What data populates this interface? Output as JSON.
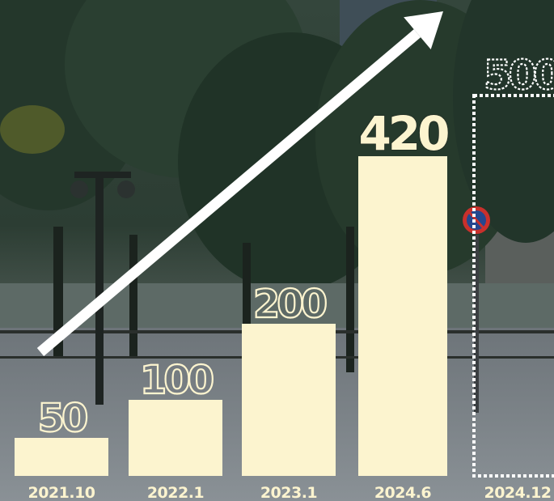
{
  "chart_data": {
    "type": "bar",
    "categories": [
      "2021.10",
      "2022.1",
      "2023.1",
      "2024.6",
      "2024.12"
    ],
    "values": [
      50,
      100,
      200,
      420,
      500
    ],
    "planned": [
      false,
      false,
      false,
      false,
      true
    ],
    "data_labels": [
      "50",
      "100",
      "200",
      "420",
      "500"
    ],
    "ylim": [
      0,
      500
    ],
    "grid": false,
    "title": "",
    "xlabel": "",
    "ylabel": "",
    "trend_arrow": true,
    "colors": {
      "bar": "#fcf4cf",
      "planned_outline": "#ffffff",
      "arrow": "#ffffff",
      "label": "#fcf4cf"
    }
  }
}
